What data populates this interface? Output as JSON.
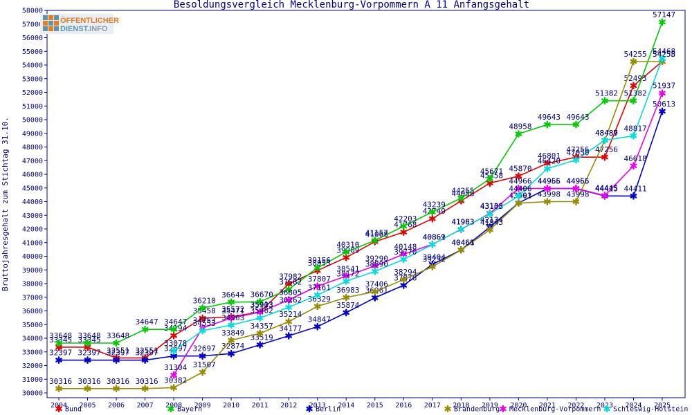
{
  "logo": {
    "line1": "ÖFFENTLICHER",
    "line2_part1": "DIENST",
    "line2_part2": ".INFO",
    "orange": "#e87c1e",
    "teal": "#5e93a8",
    "info_gray": "#8d9aa4",
    "bg": "#e7eff5"
  },
  "chart_data": {
    "type": "line",
    "title": "Besoldungsvergleich Mecklenburg-Vorpommern A 11 Anfangsgehalt",
    "ylabel": "Bruttojahresgehalt zum Stichtag 31.10.",
    "text_color": "#000080",
    "ylim": [
      30000,
      58000
    ],
    "ytick_step": 1000,
    "grid": false,
    "legend_position": "bottom",
    "x": [
      2004,
      2005,
      2006,
      2007,
      2008,
      2009,
      2010,
      2011,
      2012,
      2013,
      2014,
      2015,
      2016,
      2017,
      2018,
      2019,
      2020,
      2021,
      2022,
      2023,
      2024,
      2025
    ],
    "series": [
      {
        "name": "Bund",
        "color": "#e80000",
        "values": [
          33345,
          33345,
          32551,
          32551,
          34194,
          35458,
          35572,
          35913,
          37982,
          38953,
          39909,
          41068,
          41768,
          42749,
          44058,
          45358,
          45870,
          46801,
          47256,
          47256,
          52493,
          54258
        ]
      },
      {
        "name": "Bayern",
        "color": "#00cc00",
        "values": [
          33648,
          33648,
          33648,
          34647,
          34647,
          36210,
          36644,
          36670,
          37582,
          39156,
          40310,
          41157,
          42203,
          43239,
          44255,
          45671,
          48958,
          49643,
          49643,
          51382,
          51382,
          57147
        ]
      },
      {
        "name": "Berlin",
        "color": "#0000d0",
        "values": [
          32397,
          32397,
          32397,
          32397,
          32697,
          32697,
          32874,
          33519,
          34177,
          34847,
          35874,
          36961,
          37876,
          39404,
          40468,
          42134,
          43903,
          44955,
          44955,
          44415,
          44411,
          50613
        ]
      },
      {
        "name": "Brandenburg",
        "color": "#968c00",
        "values": [
          30316,
          30316,
          30316,
          30316,
          30382,
          31507,
          33849,
          34357,
          35214,
          36329,
          36983,
          37406,
          38294,
          39232,
          40461,
          41943,
          43891,
          43998,
          43998,
          48487,
          54255,
          54255
        ]
      },
      {
        "name": "Mecklenburg-Vorpommern",
        "color": "#ee00ee",
        "values": [
          null,
          null,
          null,
          null,
          31304,
          34753,
          35471,
          35903,
          36805,
          37807,
          38541,
          39290,
          40148,
          40869,
          41963,
          43138,
          44966,
          44966,
          44966,
          44445,
          46618,
          51937
        ]
      },
      {
        "name": "Schleswig-Holstein",
        "color": "#00dede",
        "values": [
          null,
          null,
          null,
          null,
          33078,
          34553,
          34963,
          35482,
          36262,
          37161,
          38172,
          38890,
          39770,
          40861,
          41983,
          43103,
          44406,
          46420,
          47050,
          48489,
          48817,
          54468
        ]
      }
    ]
  }
}
